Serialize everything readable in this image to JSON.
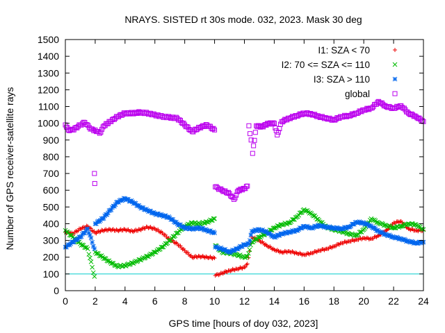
{
  "chart_data": {
    "type": "scatter",
    "title": "NRAYS. SISTED rt 30s mode. 032, 2023. Mask 30 deg",
    "xlabel": "GPS time [hours of doy 032, 2023]",
    "ylabel": "Number of GPS receiver-satellite rays",
    "xlim": [
      0,
      24
    ],
    "ylim": [
      0,
      1500
    ],
    "xticks": [
      0,
      2,
      4,
      6,
      8,
      10,
      12,
      14,
      16,
      18,
      20,
      22,
      24
    ],
    "yticks": [
      0,
      100,
      200,
      300,
      400,
      500,
      600,
      700,
      800,
      900,
      1000,
      1100,
      1200,
      1300,
      1400,
      1500
    ],
    "grid": false,
    "legend_position": "top-right",
    "reference_line": {
      "y": 100,
      "color": "#00cccc"
    },
    "series": [
      {
        "name": "I1: SZA < 70",
        "marker": "+",
        "color": "#ee0000",
        "points": [
          [
            0,
            350
          ],
          [
            0.5,
            340
          ],
          [
            1,
            370
          ],
          [
            1.5,
            385
          ],
          [
            2,
            345
          ],
          [
            2.5,
            360
          ],
          [
            3,
            365
          ],
          [
            3.5,
            360
          ],
          [
            4,
            365
          ],
          [
            4.5,
            355
          ],
          [
            5,
            365
          ],
          [
            5.5,
            380
          ],
          [
            6,
            370
          ],
          [
            6.5,
            345
          ],
          [
            7,
            305
          ],
          [
            7.5,
            280
          ],
          [
            8,
            240
          ],
          [
            8.5,
            200
          ],
          [
            9,
            205
          ],
          [
            9.5,
            200
          ],
          [
            10,
            195
          ],
          [
            10.05,
            90
          ],
          [
            10.5,
            105
          ],
          [
            11,
            120
          ],
          [
            11.5,
            130
          ],
          [
            12,
            140
          ],
          [
            12.2,
            160
          ],
          [
            12.5,
            320
          ],
          [
            13,
            300
          ],
          [
            13.5,
            270
          ],
          [
            14,
            245
          ],
          [
            14.5,
            230
          ],
          [
            15,
            235
          ],
          [
            15.5,
            225
          ],
          [
            16,
            215
          ],
          [
            16.5,
            225
          ],
          [
            17,
            240
          ],
          [
            17.5,
            250
          ],
          [
            18,
            265
          ],
          [
            18.5,
            285
          ],
          [
            19,
            295
          ],
          [
            19.5,
            305
          ],
          [
            20,
            315
          ],
          [
            20.5,
            310
          ],
          [
            21,
            330
          ],
          [
            21.5,
            360
          ],
          [
            22,
            405
          ],
          [
            22.5,
            415
          ],
          [
            23,
            370
          ],
          [
            23.5,
            360
          ],
          [
            24,
            360
          ]
        ]
      },
      {
        "name": "I2: 70 <= SZA <= 110",
        "marker": "x",
        "color": "#00bb00",
        "points": [
          [
            0,
            360
          ],
          [
            0.5,
            320
          ],
          [
            1,
            280
          ],
          [
            1.5,
            250
          ],
          [
            1.95,
            85
          ],
          [
            2,
            230
          ],
          [
            2.5,
            200
          ],
          [
            3,
            170
          ],
          [
            3.5,
            145
          ],
          [
            4,
            150
          ],
          [
            4.5,
            165
          ],
          [
            5,
            185
          ],
          [
            5.5,
            205
          ],
          [
            6,
            230
          ],
          [
            6.5,
            260
          ],
          [
            7,
            300
          ],
          [
            7.5,
            345
          ],
          [
            8,
            385
          ],
          [
            8.5,
            405
          ],
          [
            9,
            400
          ],
          [
            9.5,
            410
          ],
          [
            10,
            430
          ],
          [
            10.05,
            270
          ],
          [
            10.5,
            230
          ],
          [
            11,
            225
          ],
          [
            11.5,
            215
          ],
          [
            12,
            200
          ],
          [
            12.2,
            205
          ],
          [
            12.5,
            290
          ],
          [
            13,
            320
          ],
          [
            13.5,
            345
          ],
          [
            14,
            375
          ],
          [
            14.5,
            395
          ],
          [
            15,
            405
          ],
          [
            15.5,
            440
          ],
          [
            16,
            485
          ],
          [
            16.5,
            460
          ],
          [
            17,
            420
          ],
          [
            17.5,
            380
          ],
          [
            18,
            365
          ],
          [
            18.5,
            355
          ],
          [
            19,
            340
          ],
          [
            19.5,
            330
          ],
          [
            20,
            365
          ],
          [
            20.5,
            430
          ],
          [
            21,
            405
          ],
          [
            21.5,
            390
          ],
          [
            22,
            375
          ],
          [
            22.5,
            385
          ],
          [
            23,
            400
          ],
          [
            23.5,
            395
          ],
          [
            24,
            365
          ]
        ]
      },
      {
        "name": "I3: SZA > 110",
        "marker": "*",
        "color": "#0066ee",
        "points": [
          [
            0,
            260
          ],
          [
            0.5,
            290
          ],
          [
            1,
            320
          ],
          [
            1.5,
            370
          ],
          [
            1.95,
            250
          ],
          [
            2,
            400
          ],
          [
            2.5,
            430
          ],
          [
            3,
            480
          ],
          [
            3.5,
            530
          ],
          [
            4,
            550
          ],
          [
            4.5,
            530
          ],
          [
            5,
            500
          ],
          [
            5.5,
            480
          ],
          [
            6,
            460
          ],
          [
            6.5,
            450
          ],
          [
            7,
            435
          ],
          [
            7.5,
            400
          ],
          [
            8,
            375
          ],
          [
            8.5,
            370
          ],
          [
            9,
            375
          ],
          [
            9.5,
            360
          ],
          [
            10,
            345
          ],
          [
            10.05,
            260
          ],
          [
            10.5,
            250
          ],
          [
            11,
            230
          ],
          [
            11.5,
            250
          ],
          [
            12,
            275
          ],
          [
            12.3,
            280
          ],
          [
            12.5,
            355
          ],
          [
            13,
            365
          ],
          [
            13.5,
            350
          ],
          [
            14,
            320
          ],
          [
            14.5,
            340
          ],
          [
            15,
            350
          ],
          [
            15.5,
            360
          ],
          [
            16,
            385
          ],
          [
            16.5,
            375
          ],
          [
            17,
            390
          ],
          [
            17.5,
            380
          ],
          [
            18,
            375
          ],
          [
            18.5,
            370
          ],
          [
            19,
            380
          ],
          [
            19.5,
            410
          ],
          [
            20,
            405
          ],
          [
            20.5,
            385
          ],
          [
            21,
            355
          ],
          [
            21.5,
            335
          ],
          [
            22,
            320
          ],
          [
            22.5,
            310
          ],
          [
            23,
            295
          ],
          [
            23.5,
            285
          ],
          [
            24,
            290
          ]
        ]
      },
      {
        "name": "global",
        "marker": "square",
        "color": "#bb00ee",
        "points": [
          [
            0,
            990
          ],
          [
            0.2,
            960
          ],
          [
            0.5,
            960
          ],
          [
            1,
            990
          ],
          [
            1.3,
            1005
          ],
          [
            1.6,
            975
          ],
          [
            1.9,
            955
          ],
          [
            1.95,
            700
          ],
          [
            1.97,
            640
          ],
          [
            2,
            960
          ],
          [
            2.3,
            940
          ],
          [
            2.6,
            985
          ],
          [
            3,
            1010
          ],
          [
            3.5,
            1040
          ],
          [
            4,
            1060
          ],
          [
            4.5,
            1060
          ],
          [
            5,
            1065
          ],
          [
            5.5,
            1060
          ],
          [
            6,
            1050
          ],
          [
            6.5,
            1040
          ],
          [
            7,
            1035
          ],
          [
            7.5,
            1030
          ],
          [
            8,
            990
          ],
          [
            8.5,
            950
          ],
          [
            9,
            975
          ],
          [
            9.5,
            990
          ],
          [
            10,
            960
          ],
          [
            10.05,
            620
          ],
          [
            10.5,
            600
          ],
          [
            11,
            580
          ],
          [
            11.3,
            545
          ],
          [
            11.6,
            600
          ],
          [
            12,
            610
          ],
          [
            12.2,
            625
          ],
          [
            12.3,
            985
          ],
          [
            12.45,
            900
          ],
          [
            12.55,
            820
          ],
          [
            12.8,
            985
          ],
          [
            13.2,
            980
          ],
          [
            13.6,
            1000
          ],
          [
            14,
            1000
          ],
          [
            14.2,
            930
          ],
          [
            14.5,
            1010
          ],
          [
            15,
            1030
          ],
          [
            15.5,
            1045
          ],
          [
            16,
            1060
          ],
          [
            16.5,
            1055
          ],
          [
            17,
            1040
          ],
          [
            17.5,
            1030
          ],
          [
            18,
            1020
          ],
          [
            18.5,
            1040
          ],
          [
            19,
            1045
          ],
          [
            19.5,
            1060
          ],
          [
            20,
            1080
          ],
          [
            20.5,
            1090
          ],
          [
            21,
            1130
          ],
          [
            21.5,
            1100
          ],
          [
            22,
            1090
          ],
          [
            22.5,
            1105
          ],
          [
            23,
            1060
          ],
          [
            23.5,
            1040
          ],
          [
            24,
            1010
          ]
        ]
      }
    ]
  }
}
